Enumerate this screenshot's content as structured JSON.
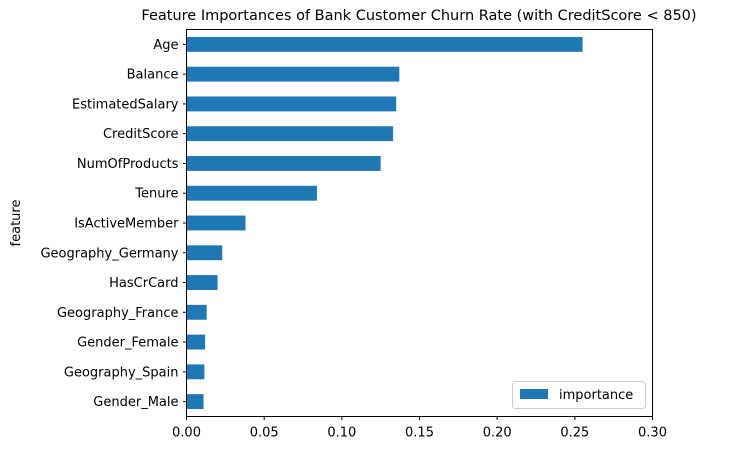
{
  "chart_data": {
    "type": "bar",
    "orientation": "horizontal",
    "title": "Feature Importances of Bank Customer Churn Rate (with CreditScore < 850)",
    "xlabel": "",
    "ylabel": "feature",
    "xlim": [
      0.0,
      0.3
    ],
    "xticks": [
      "0.00",
      "0.05",
      "0.10",
      "0.15",
      "0.20",
      "0.25",
      "0.30"
    ],
    "categories": [
      "Age",
      "Balance",
      "EstimatedSalary",
      "CreditScore",
      "NumOfProducts",
      "Tenure",
      "IsActiveMember",
      "Geography_Germany",
      "HasCrCard",
      "Geography_France",
      "Gender_Female",
      "Geography_Spain",
      "Gender_Male"
    ],
    "series": [
      {
        "name": "importance",
        "color": "#1f77b4",
        "values": [
          0.255,
          0.137,
          0.135,
          0.133,
          0.125,
          0.084,
          0.038,
          0.023,
          0.02,
          0.013,
          0.012,
          0.0115,
          0.011
        ]
      }
    ],
    "grid": false,
    "legend_position": "lower right"
  }
}
